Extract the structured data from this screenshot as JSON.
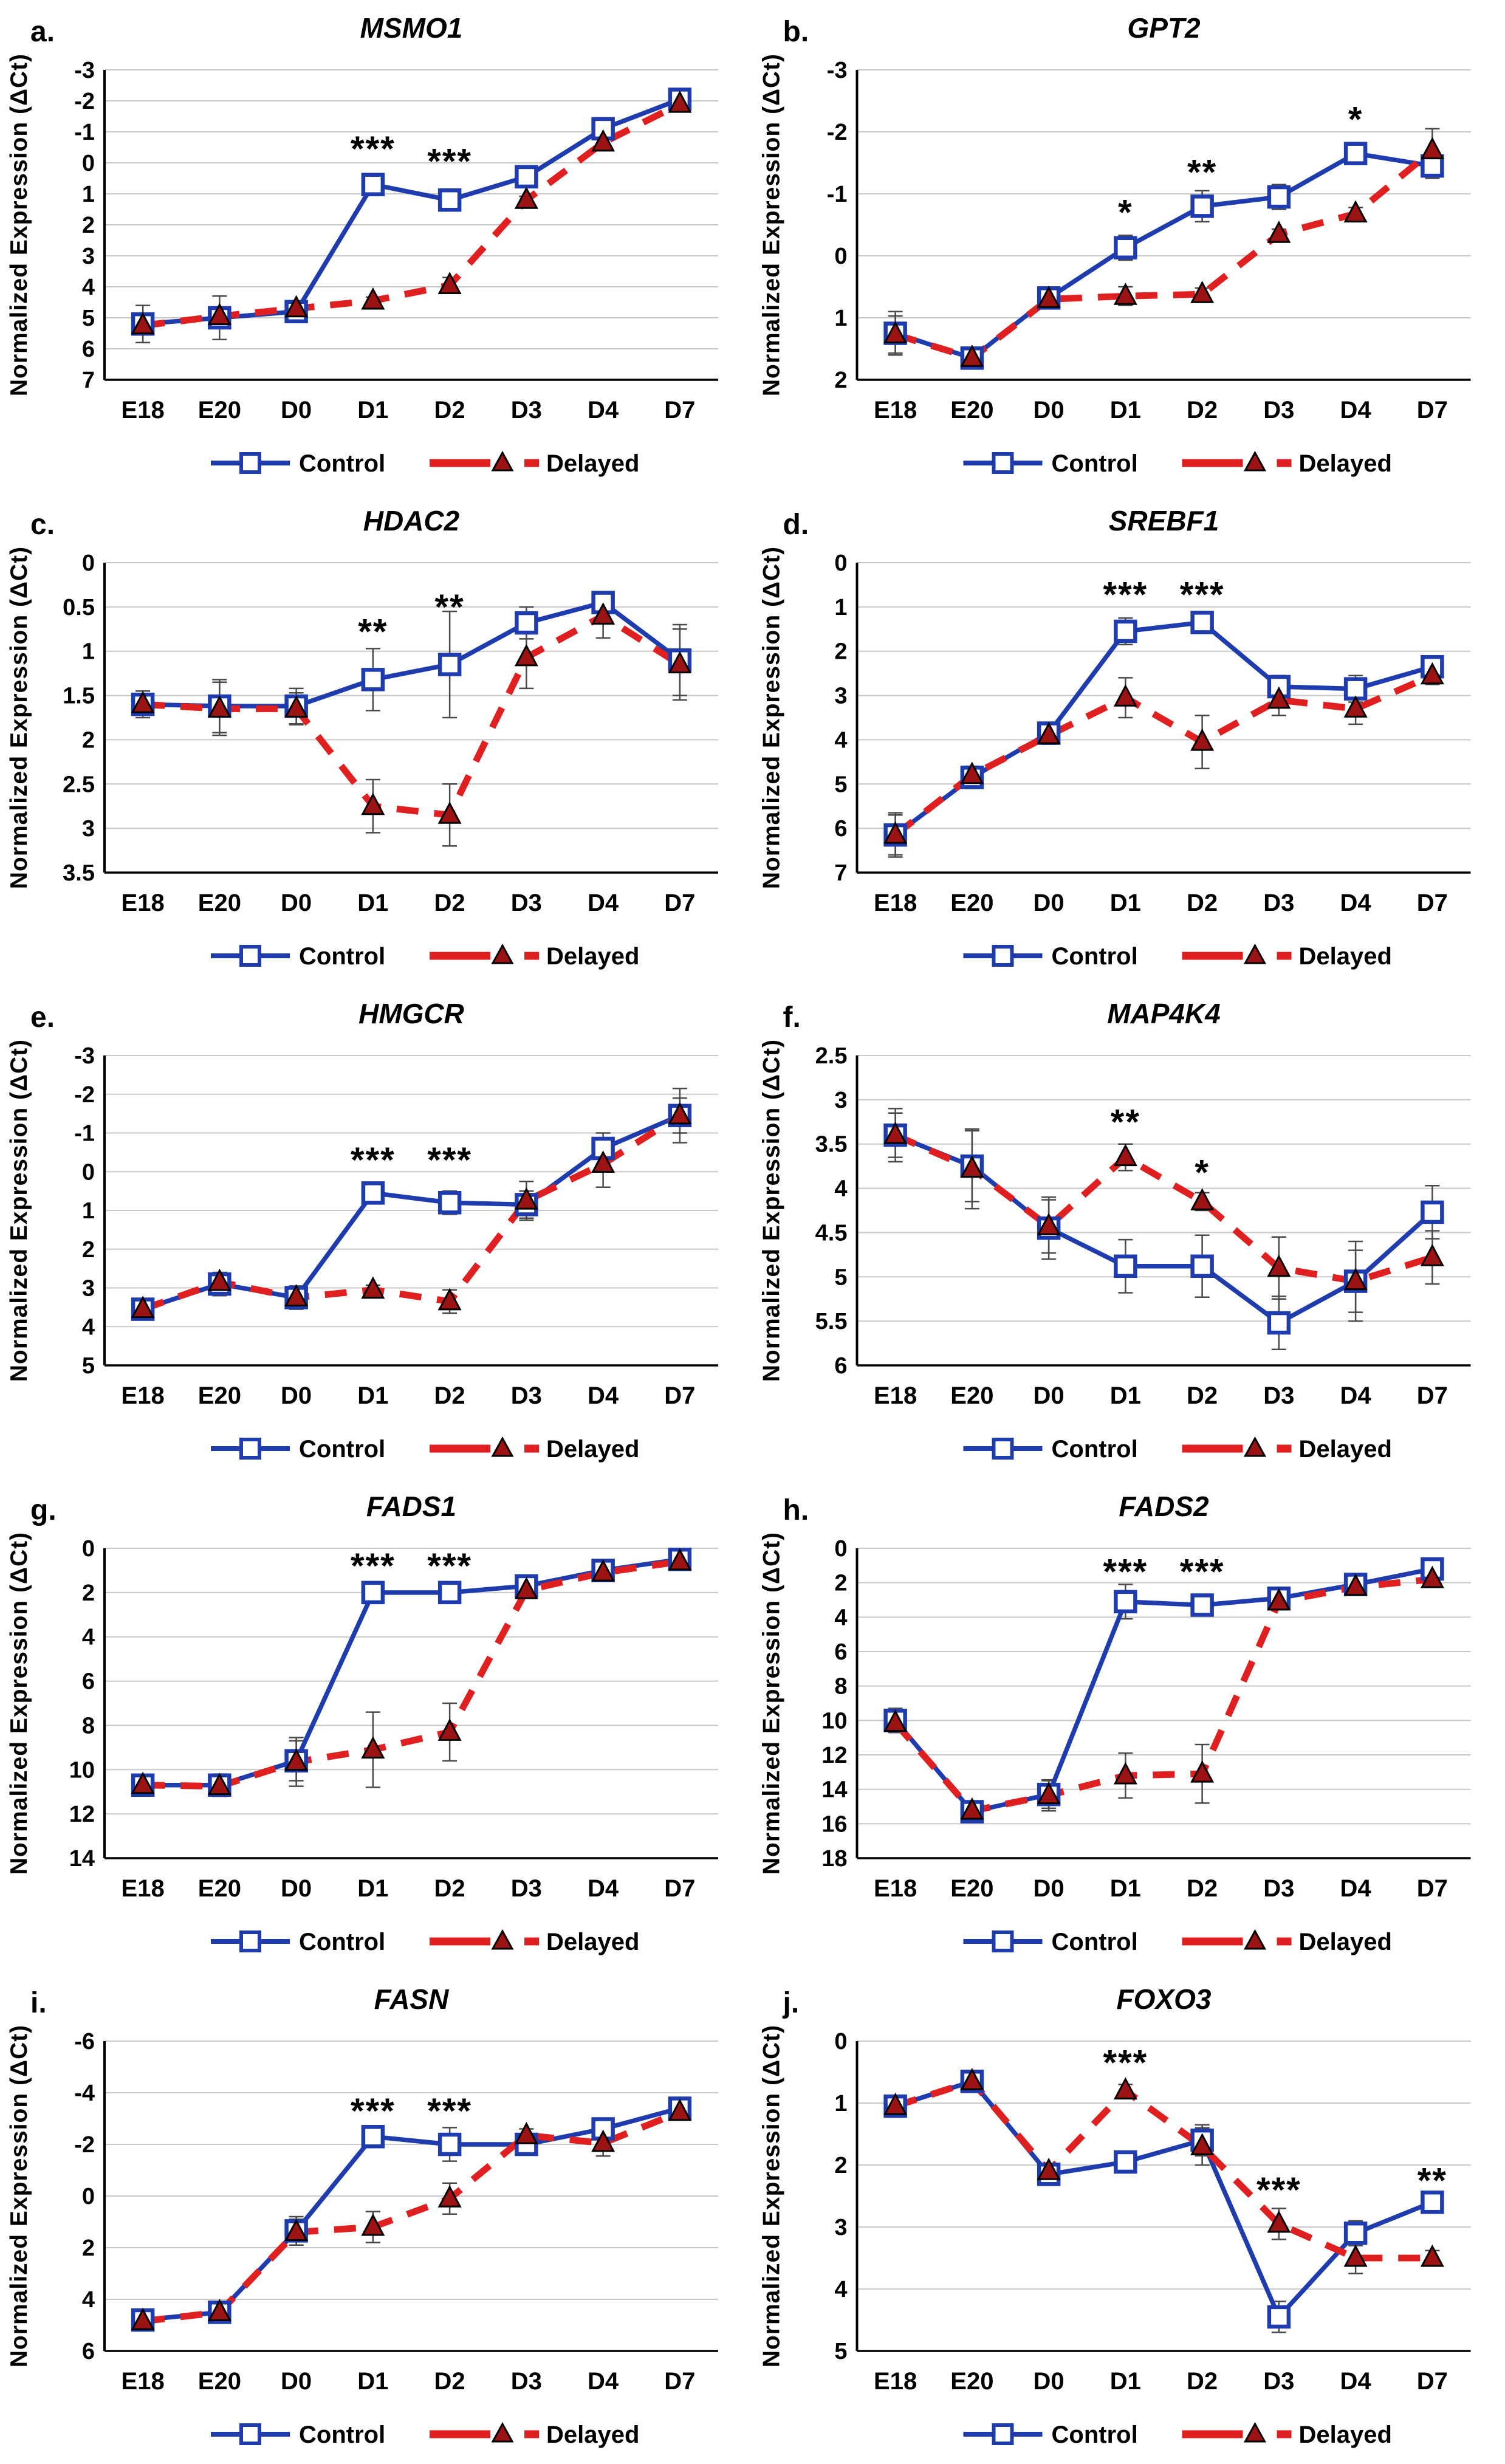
{
  "figure": {
    "ylabel": "Normalized Expression (ΔCt)",
    "x_categories": [
      "E18",
      "E20",
      "D0",
      "D1",
      "D2",
      "D3",
      "D4",
      "D7"
    ],
    "legend": {
      "control_label": "Control",
      "delayed_label": "Delayed"
    },
    "colors": {
      "control_line": "#1e3cae",
      "delayed_line": "#e02020",
      "delayed_marker_fill": "#9b1313",
      "marker_edge": "#000000",
      "control_marker_fill": "#ffffff",
      "grid": "#c8c8c8",
      "axis": "#000000",
      "error_bar": "#4a4a4a",
      "text": "#000000"
    }
  },
  "chart_data": [
    {
      "panel": "a",
      "letter": "a.",
      "title": "MSMO1",
      "type": "line",
      "ylim": [
        -3,
        7
      ],
      "ytick_step": 1,
      "grid": true,
      "legend_position": "bottom",
      "categories": [
        "E18",
        "E20",
        "D0",
        "D1",
        "D2",
        "D3",
        "D4",
        "D7"
      ],
      "series": [
        {
          "name": "Control",
          "values": [
            5.2,
            5.0,
            4.8,
            0.7,
            1.2,
            0.45,
            -1.1,
            -2.05
          ],
          "err": [
            0.6,
            0.7,
            0.3,
            0.25,
            0.25,
            0.25,
            0.3,
            0.3
          ]
        },
        {
          "name": "Delayed",
          "values": [
            5.25,
            4.95,
            4.7,
            4.45,
            3.95,
            1.2,
            -0.65,
            -1.9
          ],
          "err": [
            0.2,
            0.1,
            0.15,
            0.12,
            0.25,
            0.12,
            0.12,
            0.25
          ]
        }
      ],
      "annotations": [
        {
          "cat": "D1",
          "label": "***",
          "y": -0.45
        },
        {
          "cat": "D2",
          "label": "***",
          "y": -0.05
        }
      ]
    },
    {
      "panel": "b",
      "letter": "b.",
      "title": "GPT2",
      "type": "line",
      "ylim": [
        -3,
        2
      ],
      "ytick_step": 1,
      "grid": true,
      "legend_position": "bottom",
      "categories": [
        "E18",
        "E20",
        "D0",
        "D1",
        "D2",
        "D3",
        "D4",
        "D7"
      ],
      "series": [
        {
          "name": "Control",
          "values": [
            1.25,
            1.65,
            0.68,
            -0.13,
            -0.8,
            -0.95,
            -1.65,
            -1.45
          ],
          "err": [
            0.35,
            0.12,
            0.15,
            0.2,
            0.25,
            0.2,
            0.12,
            0.2
          ]
        },
        {
          "name": "Delayed",
          "values": [
            1.27,
            1.65,
            0.7,
            0.65,
            0.62,
            -0.35,
            -0.68,
            -1.7
          ],
          "err": [
            0.3,
            0.12,
            0.12,
            0.15,
            0.1,
            0.08,
            0.1,
            0.35
          ]
        }
      ],
      "annotations": [
        {
          "cat": "D1",
          "label": "*",
          "y": -0.7
        },
        {
          "cat": "D2",
          "label": "**",
          "y": -1.35
        },
        {
          "cat": "D4",
          "label": "*",
          "y": -2.2
        }
      ]
    },
    {
      "panel": "c",
      "letter": "c.",
      "title": "HDAC2",
      "type": "line",
      "ylim": [
        0,
        3.5
      ],
      "ytick_step": 0.5,
      "grid": true,
      "legend_position": "bottom",
      "categories": [
        "E18",
        "E20",
        "D0",
        "D1",
        "D2",
        "D3",
        "D4",
        "D7"
      ],
      "series": [
        {
          "name": "Control",
          "values": [
            1.6,
            1.62,
            1.62,
            1.32,
            1.15,
            0.68,
            0.45,
            1.1
          ],
          "err": [
            0.15,
            0.3,
            0.2,
            0.35,
            0.6,
            0.18,
            0.12,
            0.4
          ]
        },
        {
          "name": "Delayed",
          "values": [
            1.6,
            1.65,
            1.65,
            2.75,
            2.85,
            1.07,
            0.6,
            1.15
          ],
          "err": [
            0.12,
            0.3,
            0.18,
            0.3,
            0.35,
            0.35,
            0.25,
            0.4
          ]
        }
      ],
      "annotations": [
        {
          "cat": "D1",
          "label": "**",
          "y": 0.78
        },
        {
          "cat": "D2",
          "label": "**",
          "y": 0.5
        }
      ]
    },
    {
      "panel": "d",
      "letter": "d.",
      "title": "SREBF1",
      "type": "line",
      "ylim": [
        0,
        7
      ],
      "ytick_step": 1,
      "grid": true,
      "legend_position": "bottom",
      "categories": [
        "E18",
        "E20",
        "D0",
        "D1",
        "D2",
        "D3",
        "D4",
        "D7"
      ],
      "series": [
        {
          "name": "Control",
          "values": [
            6.15,
            4.85,
            3.85,
            1.55,
            1.35,
            2.8,
            2.85,
            2.35
          ],
          "err": [
            0.5,
            0.25,
            0.2,
            0.3,
            0.2,
            0.25,
            0.3,
            0.2
          ]
        },
        {
          "name": "Delayed",
          "values": [
            6.15,
            4.8,
            3.9,
            3.05,
            4.05,
            3.1,
            3.3,
            2.55
          ],
          "err": [
            0.45,
            0.2,
            0.2,
            0.45,
            0.6,
            0.35,
            0.35,
            0.2
          ]
        }
      ],
      "annotations": [
        {
          "cat": "D1",
          "label": "***",
          "y": 0.72
        },
        {
          "cat": "D2",
          "label": "***",
          "y": 0.72
        }
      ]
    },
    {
      "panel": "e",
      "letter": "e.",
      "title": "HMGCR",
      "type": "line",
      "ylim": [
        -3,
        5
      ],
      "ytick_step": 1,
      "grid": true,
      "legend_position": "bottom",
      "categories": [
        "E18",
        "E20",
        "D0",
        "D1",
        "D2",
        "D3",
        "D4",
        "D7"
      ],
      "series": [
        {
          "name": "Control",
          "values": [
            3.55,
            2.9,
            3.25,
            0.55,
            0.8,
            0.85,
            -0.6,
            -1.45
          ],
          "err": [
            0.25,
            0.3,
            0.3,
            0.25,
            0.3,
            0.35,
            0.4,
            0.45
          ]
        },
        {
          "name": "Delayed",
          "values": [
            3.55,
            2.85,
            3.25,
            3.05,
            3.35,
            0.75,
            -0.2,
            -1.45
          ],
          "err": [
            0.2,
            0.2,
            0.2,
            0.12,
            0.3,
            0.5,
            0.6,
            0.7
          ]
        }
      ],
      "annotations": [
        {
          "cat": "D1",
          "label": "***",
          "y": -0.3
        },
        {
          "cat": "D2",
          "label": "***",
          "y": -0.3
        }
      ]
    },
    {
      "panel": "f",
      "letter": "f.",
      "title": "MAP4K4",
      "type": "line",
      "ylim": [
        2.5,
        6
      ],
      "ytick_step": 0.5,
      "grid": true,
      "legend_position": "bottom",
      "categories": [
        "E18",
        "E20",
        "D0",
        "D1",
        "D2",
        "D3",
        "D4",
        "D7"
      ],
      "series": [
        {
          "name": "Control",
          "values": [
            3.4,
            3.75,
            4.45,
            4.88,
            4.88,
            5.52,
            5.05,
            4.27
          ],
          "err": [
            0.3,
            0.4,
            0.35,
            0.3,
            0.35,
            0.3,
            0.35,
            0.3
          ]
        },
        {
          "name": "Delayed",
          "values": [
            3.4,
            3.78,
            4.43,
            3.65,
            4.15,
            4.9,
            5.05,
            4.78
          ],
          "err": [
            0.25,
            0.45,
            0.3,
            0.15,
            0.1,
            0.35,
            0.45,
            0.3
          ]
        }
      ],
      "annotations": [
        {
          "cat": "D1",
          "label": "**",
          "y": 3.25
        },
        {
          "cat": "D2",
          "label": "*",
          "y": 3.82
        }
      ]
    },
    {
      "panel": "g",
      "letter": "g.",
      "title": "FADS1",
      "type": "line",
      "ylim": [
        0,
        14
      ],
      "ytick_step": 2,
      "grid": true,
      "legend_position": "bottom",
      "categories": [
        "E18",
        "E20",
        "D0",
        "D1",
        "D2",
        "D3",
        "D4",
        "D7"
      ],
      "series": [
        {
          "name": "Control",
          "values": [
            10.7,
            10.7,
            9.6,
            2.0,
            2.0,
            1.7,
            1.0,
            0.5
          ],
          "err": [
            0.4,
            0.5,
            0.9,
            0.4,
            0.3,
            0.35,
            0.2,
            0.3
          ]
        },
        {
          "name": "Delayed",
          "values": [
            10.7,
            10.75,
            9.65,
            9.1,
            8.3,
            1.9,
            1.1,
            0.6
          ],
          "err": [
            0.35,
            0.45,
            1.1,
            1.7,
            1.3,
            0.3,
            0.2,
            0.2
          ]
        }
      ],
      "annotations": [
        {
          "cat": "D1",
          "label": "***",
          "y": 0.8
        },
        {
          "cat": "D2",
          "label": "***",
          "y": 0.8
        }
      ]
    },
    {
      "panel": "h",
      "letter": "h.",
      "title": "FADS2",
      "type": "line",
      "ylim": [
        0,
        18
      ],
      "ytick_step": 2,
      "grid": true,
      "legend_position": "bottom",
      "categories": [
        "E18",
        "E20",
        "D0",
        "D1",
        "D2",
        "D3",
        "D4",
        "D7"
      ],
      "series": [
        {
          "name": "Control",
          "values": [
            10.0,
            15.3,
            14.3,
            3.1,
            3.3,
            2.9,
            2.1,
            1.2
          ],
          "err": [
            0.7,
            0.5,
            0.8,
            1.0,
            0.6,
            0.5,
            0.5,
            0.5
          ]
        },
        {
          "name": "Delayed",
          "values": [
            10.15,
            15.25,
            14.35,
            13.2,
            13.1,
            3.1,
            2.25,
            1.8
          ],
          "err": [
            0.55,
            0.4,
            0.9,
            1.3,
            1.7,
            0.4,
            0.4,
            0.3
          ]
        }
      ],
      "annotations": [
        {
          "cat": "D1",
          "label": "***",
          "y": 1.35
        },
        {
          "cat": "D2",
          "label": "***",
          "y": 1.35
        }
      ]
    },
    {
      "panel": "i",
      "letter": "i.",
      "title": "FASN",
      "type": "line",
      "ylim": [
        -6,
        6
      ],
      "ytick_step": 2,
      "grid": true,
      "legend_position": "bottom",
      "categories": [
        "E18",
        "E20",
        "D0",
        "D1",
        "D2",
        "D3",
        "D4",
        "D7"
      ],
      "series": [
        {
          "name": "Control",
          "values": [
            4.8,
            4.5,
            1.35,
            -2.3,
            -2.0,
            -2.0,
            -2.6,
            -3.4
          ],
          "err": [
            0.3,
            0.35,
            0.55,
            0.35,
            0.65,
            0.4,
            0.4,
            0.35
          ]
        },
        {
          "name": "Delayed",
          "values": [
            4.85,
            4.5,
            1.4,
            1.2,
            0.1,
            -2.35,
            -2.05,
            -3.25
          ],
          "err": [
            0.2,
            0.3,
            0.5,
            0.6,
            0.6,
            0.25,
            0.5,
            0.3
          ]
        }
      ],
      "annotations": [
        {
          "cat": "D1",
          "label": "***",
          "y": -3.3
        },
        {
          "cat": "D2",
          "label": "***",
          "y": -3.3
        }
      ]
    },
    {
      "panel": "j",
      "letter": "j.",
      "title": "FOXO3",
      "type": "line",
      "ylim": [
        0,
        5
      ],
      "ytick_step": 1,
      "grid": true,
      "legend_position": "bottom",
      "categories": [
        "E18",
        "E20",
        "D0",
        "D1",
        "D2",
        "D3",
        "D4",
        "D7"
      ],
      "series": [
        {
          "name": "Control",
          "values": [
            1.05,
            0.65,
            2.15,
            1.95,
            1.6,
            4.45,
            3.1,
            2.6
          ],
          "err": [
            0.15,
            0.1,
            0.1,
            0.15,
            0.25,
            0.25,
            0.2,
            0.15
          ]
        },
        {
          "name": "Delayed",
          "values": [
            1.05,
            0.65,
            2.1,
            0.8,
            1.7,
            2.95,
            3.5,
            3.5
          ],
          "err": [
            0.1,
            0.08,
            0.1,
            0.1,
            0.3,
            0.25,
            0.25,
            0.12
          ]
        }
      ],
      "annotations": [
        {
          "cat": "D1",
          "label": "***",
          "y": 0.35
        },
        {
          "cat": "D3",
          "label": "***",
          "y": 2.4
        },
        {
          "cat": "D7",
          "label": "**",
          "y": 2.25
        }
      ]
    }
  ]
}
